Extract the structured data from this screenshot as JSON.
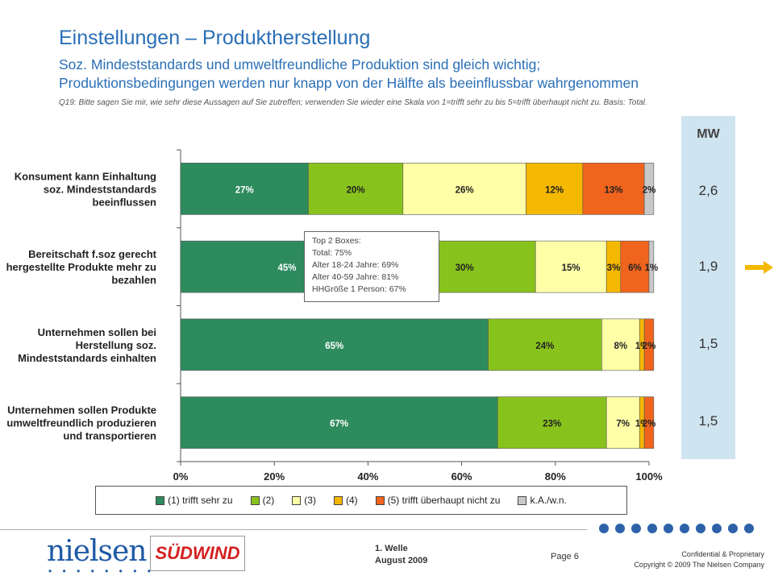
{
  "header": {
    "title": "Einstellungen – Produktherstellung",
    "subtitle_line1": "Soz. Mindeststandards und umweltfreundliche Produktion sind gleich wichtig;",
    "subtitle_line2": "Produktionsbedingungen werden nur knapp von der Hälfte als beeinflussbar wahrgenommen",
    "question": "Q19: Bitte sagen Sie mir, wie sehr diese Aussagen auf Sie zutreffen; verwenden Sie wieder eine Skala von 1=trifft sehr zu bis 5=trifft überhaupt nicht zu. Basis: Total."
  },
  "mw": {
    "label": "MW",
    "values": [
      "2,6",
      "1,9",
      "1,5",
      "1,5"
    ]
  },
  "callout": {
    "lines": [
      "Top 2 Boxes:",
      "Total: 75%",
      "Alter 18-24 Jahre: 69%",
      "Alter 40-59 Jahre: 81%",
      "HHGröße 1 Person: 67%"
    ]
  },
  "legend": [
    {
      "label": "(1) trifft sehr zu",
      "color": "#2e8b5e"
    },
    {
      "label": "(2)",
      "color": "#88c21c"
    },
    {
      "label": "(3)",
      "color": "#ffffa8"
    },
    {
      "label": "(4)",
      "color": "#f5b800"
    },
    {
      "label": "(5) trifft überhaupt nicht zu",
      "color": "#f0641e"
    },
    {
      "label": "k.A./w.n.",
      "color": "#c8c8c8"
    }
  ],
  "chart_data": {
    "type": "bar",
    "orientation": "horizontal",
    "stacked": true,
    "categories": [
      [
        "Konsument kann Einhaltung",
        "soz. Mindeststandards",
        "beeinflussen"
      ],
      [
        "Bereitschaft f.soz gerecht",
        "hergestellte Produkte mehr zu",
        "bezahlen"
      ],
      [
        "Unternehmen sollen bei",
        "Herstellung soz.",
        "Mindeststandards einhalten"
      ],
      [
        "Unternehmen sollen Produkte",
        "umweltfreundlich produzieren",
        "und transportieren"
      ]
    ],
    "series": [
      {
        "name": "(1) trifft sehr zu",
        "values": [
          27,
          45,
          65,
          67
        ]
      },
      {
        "name": "(2)",
        "values": [
          20,
          30,
          24,
          23
        ]
      },
      {
        "name": "(3)",
        "values": [
          26,
          15,
          8,
          7
        ]
      },
      {
        "name": "(4)",
        "values": [
          12,
          3,
          1,
          1
        ]
      },
      {
        "name": "(5) trifft überhaupt nicht zu",
        "values": [
          13,
          6,
          2,
          2
        ]
      },
      {
        "name": "k.A./w.n.",
        "values": [
          2,
          1,
          0,
          0
        ]
      }
    ],
    "series_colors": [
      "#2e8b5e",
      "#88c21c",
      "#ffffa8",
      "#f5b800",
      "#f0641e",
      "#c8c8c8"
    ],
    "label_colors": [
      "#ffffff",
      "#222222",
      "#222222",
      "#222222",
      "#222222",
      "#222222"
    ],
    "data_labels": [
      [
        "27%",
        "20%",
        "26%",
        "12%",
        "13%",
        "2%"
      ],
      [
        "45%",
        "30%",
        "15%",
        "3%",
        "6%",
        "1%"
      ],
      [
        "65%",
        "24%",
        "8%",
        "1%",
        "2%",
        ""
      ],
      [
        "67%",
        "23%",
        "7%",
        "1%",
        "2%",
        ""
      ]
    ],
    "x_ticks": [
      "0%",
      "20%",
      "40%",
      "60%",
      "80%",
      "100%"
    ],
    "xlim": [
      0,
      100
    ],
    "total_scale": 99
  },
  "footer": {
    "welle": "1. Welle",
    "date": "August 2009",
    "page": "Page 6",
    "confidential": "Confidential & Proprietary",
    "copyright": "Copyright © 2009 The Nielsen Company",
    "logo_nielsen": "nielsen",
    "logo_nielsen_dots": "• • • • • • • •",
    "logo_partner": "SÜDWIND",
    "dot_count": 10
  }
}
